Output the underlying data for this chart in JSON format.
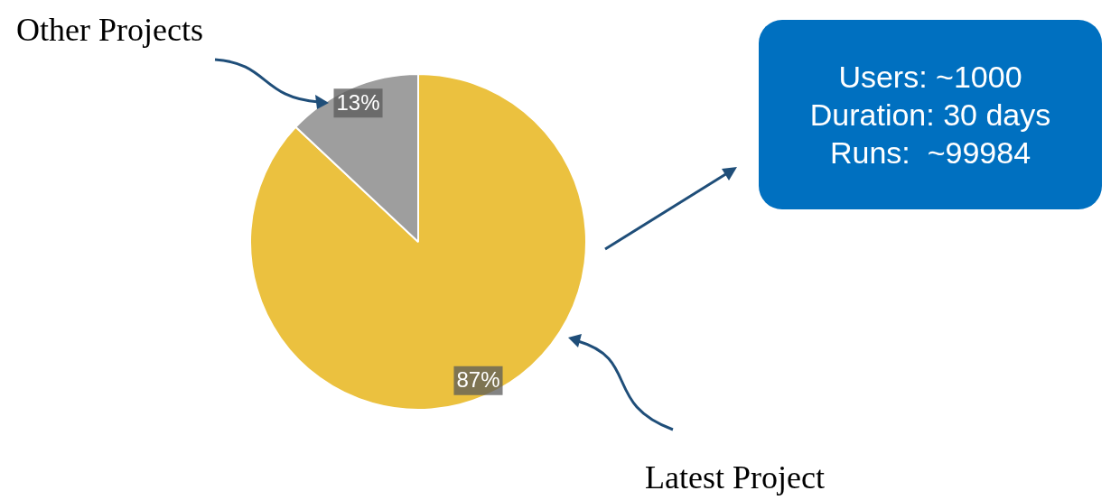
{
  "chart_data": {
    "type": "pie",
    "categories": [
      "Latest Project",
      "Other Projects"
    ],
    "values": [
      87,
      13
    ],
    "colors": [
      "#ebc13f",
      "#9e9e9e"
    ],
    "value_labels": [
      "87%",
      "13%"
    ],
    "annotations": [
      "Users: ~1000",
      "Duration: 30 days",
      "Runs:  ~99984"
    ],
    "legend": false
  }
}
